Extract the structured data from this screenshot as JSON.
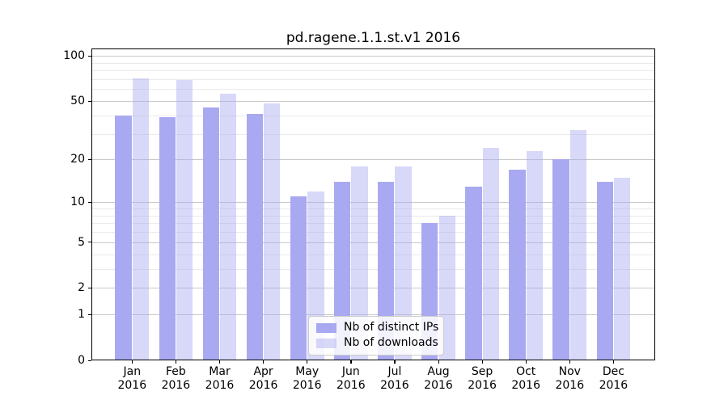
{
  "chart_data": {
    "type": "bar",
    "title": "pd.ragene.1.1.st.v1 2016",
    "categories": [
      "Jan",
      "Feb",
      "Mar",
      "Apr",
      "May",
      "Jun",
      "Jul",
      "Aug",
      "Sep",
      "Oct",
      "Nov",
      "Dec"
    ],
    "category_year": "2016",
    "series": [
      {
        "name": "Nb of distinct IPs",
        "color": "#a9a9f1",
        "opacity": 1,
        "values": [
          40,
          39,
          45,
          41,
          11,
          14,
          14,
          7,
          13,
          17,
          20,
          14
        ]
      },
      {
        "name": "Nb of downloads",
        "color": "#a9a9f1",
        "opacity": 0.45,
        "values": [
          71,
          69,
          56,
          48,
          12,
          18,
          18,
          8,
          24,
          23,
          32,
          15
        ]
      }
    ],
    "y_axis": {
      "scale": "log1p",
      "major_ticks": [
        0,
        1,
        2,
        5,
        10,
        20,
        50,
        100
      ],
      "minor_gridlines": [
        3,
        4,
        6,
        7,
        8,
        9,
        30,
        40,
        60,
        70,
        80,
        90
      ],
      "min": 0,
      "max": 112
    },
    "x_axis": {
      "grid": false
    },
    "legend": {
      "position": "bottom-center"
    },
    "colors": {
      "grid_major": "#c9c9c9",
      "grid_minor": "#eaeaea",
      "axis": "#000000",
      "background": "#ffffff"
    }
  }
}
